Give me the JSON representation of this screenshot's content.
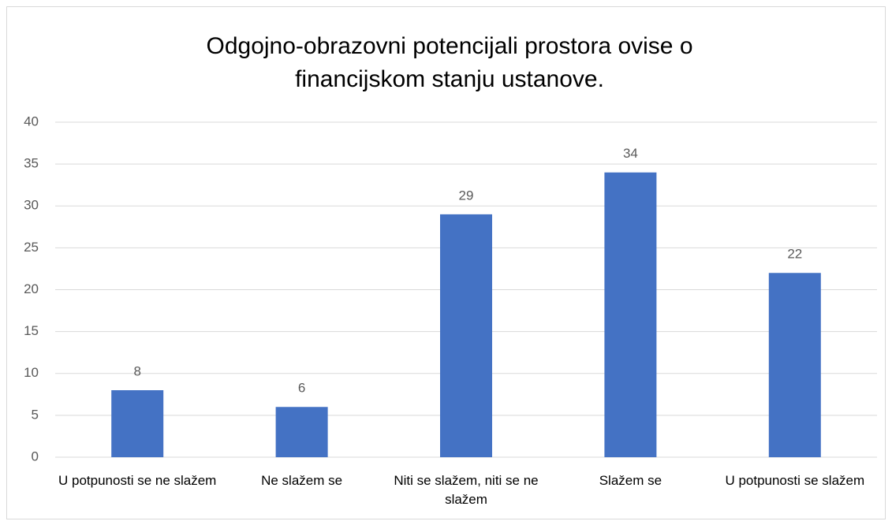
{
  "chart_data": {
    "type": "bar",
    "title": "Odgojno-obrazovni potencijali prostora ovise o financijskom stanju ustanove.",
    "categories": [
      "U potpunosti se ne slažem",
      "Ne slažem se",
      "Niti se slažem, niti se ne slažem",
      "Slažem se",
      "U potpunosti se slažem"
    ],
    "values": [
      8,
      6,
      29,
      34,
      22
    ],
    "color": "#4472c4",
    "ylim": [
      0,
      40
    ],
    "yticks": [
      0,
      5,
      10,
      15,
      20,
      25,
      30,
      35,
      40
    ],
    "grid": true
  }
}
